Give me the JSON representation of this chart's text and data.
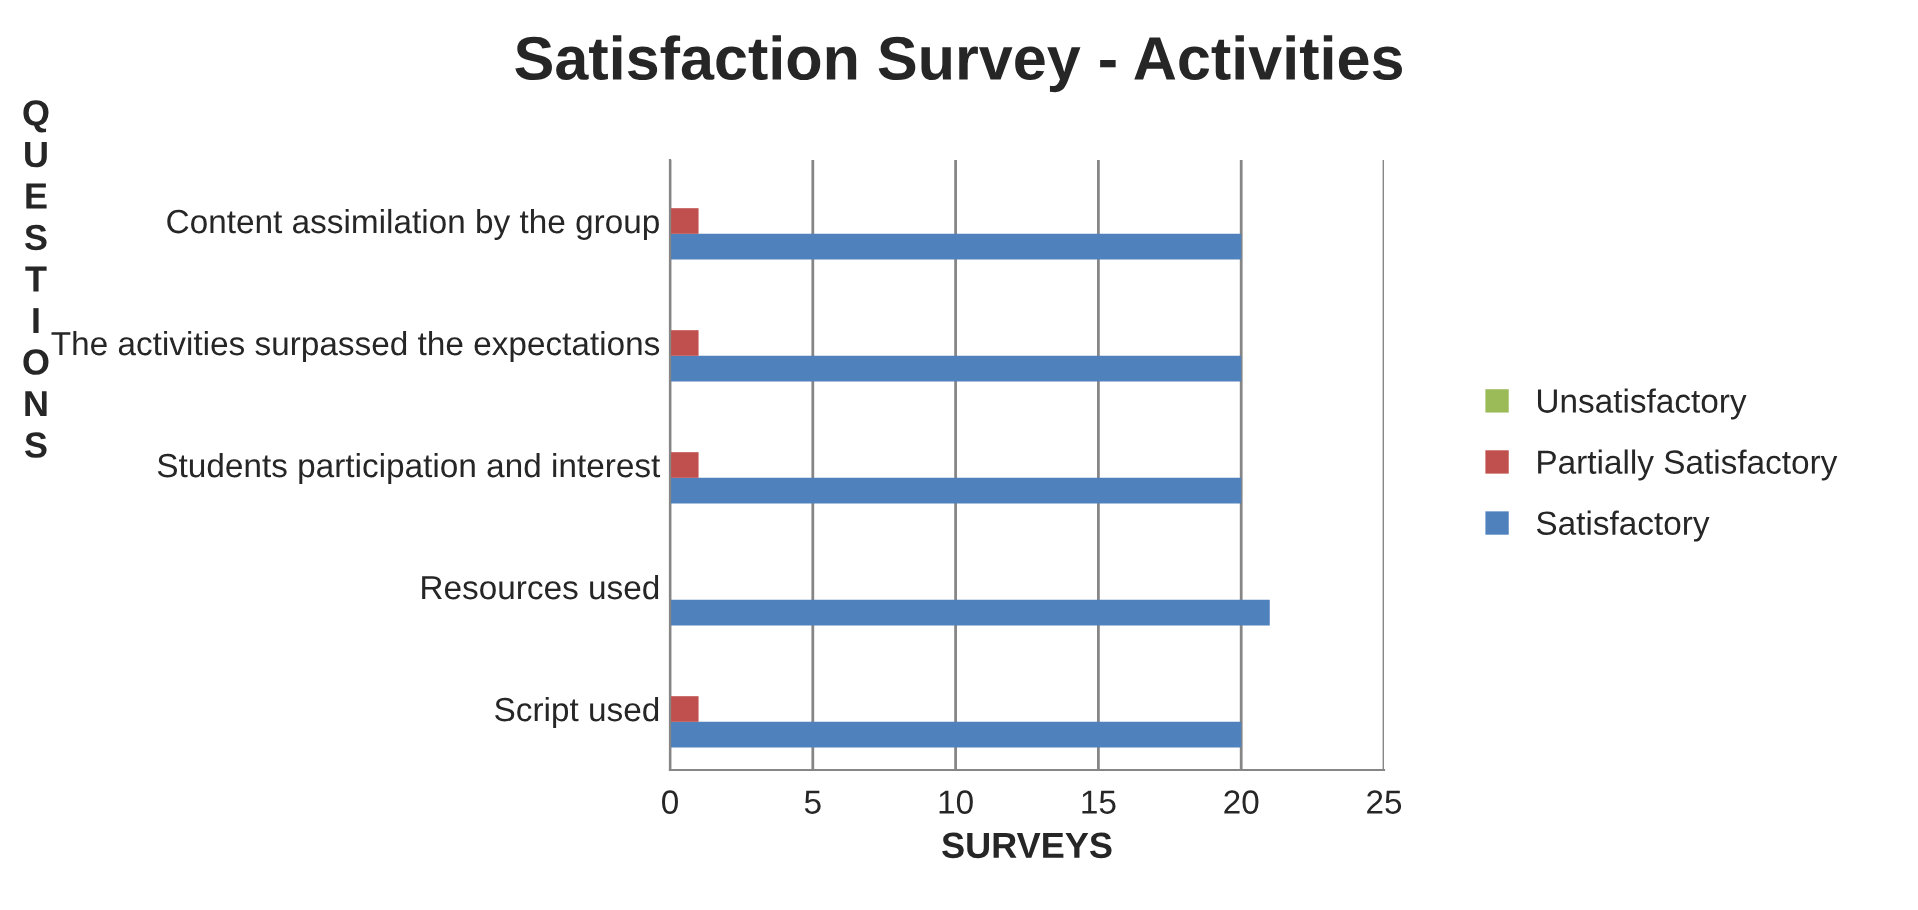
{
  "chart_data": {
    "type": "bar",
    "orientation": "horizontal",
    "title": "Satisfaction Survey - Activities",
    "xlabel": "SURVEYS",
    "ylabel": "QUESTIONS",
    "categories": [
      "Content assimilation by the group",
      "The activities surpassed the expectations",
      "Students participation and interest",
      "Resources used",
      "Script used"
    ],
    "series": [
      {
        "name": "Satisfactory",
        "color": "#4f81bd",
        "values": [
          20,
          20,
          20,
          21,
          20
        ]
      },
      {
        "name": "Partially Satisfactory",
        "color": "#c0504d",
        "values": [
          1,
          1,
          1,
          0,
          1
        ]
      },
      {
        "name": "Unsatisfactory",
        "color": "#9bbb59",
        "values": [
          0,
          0,
          0,
          0,
          0
        ]
      }
    ],
    "xlim": [
      0,
      25
    ],
    "xticks": [
      0,
      5,
      10,
      15,
      20,
      25
    ],
    "grid": "x",
    "legend": "right"
  }
}
